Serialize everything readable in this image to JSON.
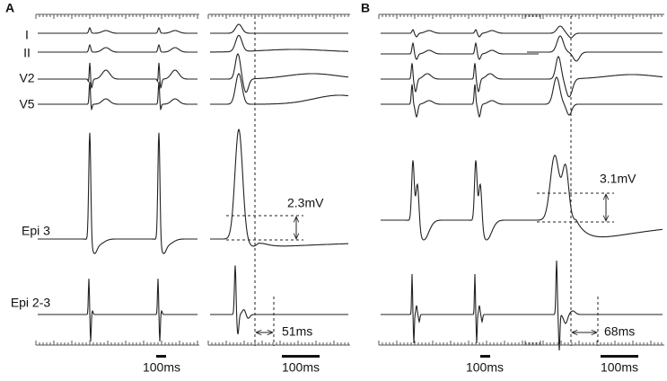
{
  "panels": [
    {
      "label": "A",
      "leads": [
        "I",
        "II",
        "V2",
        "V5",
        "Epi 3",
        "Epi 2-3"
      ],
      "amplitude": "2.3mV",
      "duration": "51ms",
      "scale_left": "100ms",
      "scale_right": "100ms"
    },
    {
      "label": "B",
      "amplitude": "3.1mV",
      "duration": "68ms",
      "scale_left": "100ms",
      "scale_right": "100ms"
    }
  ]
}
